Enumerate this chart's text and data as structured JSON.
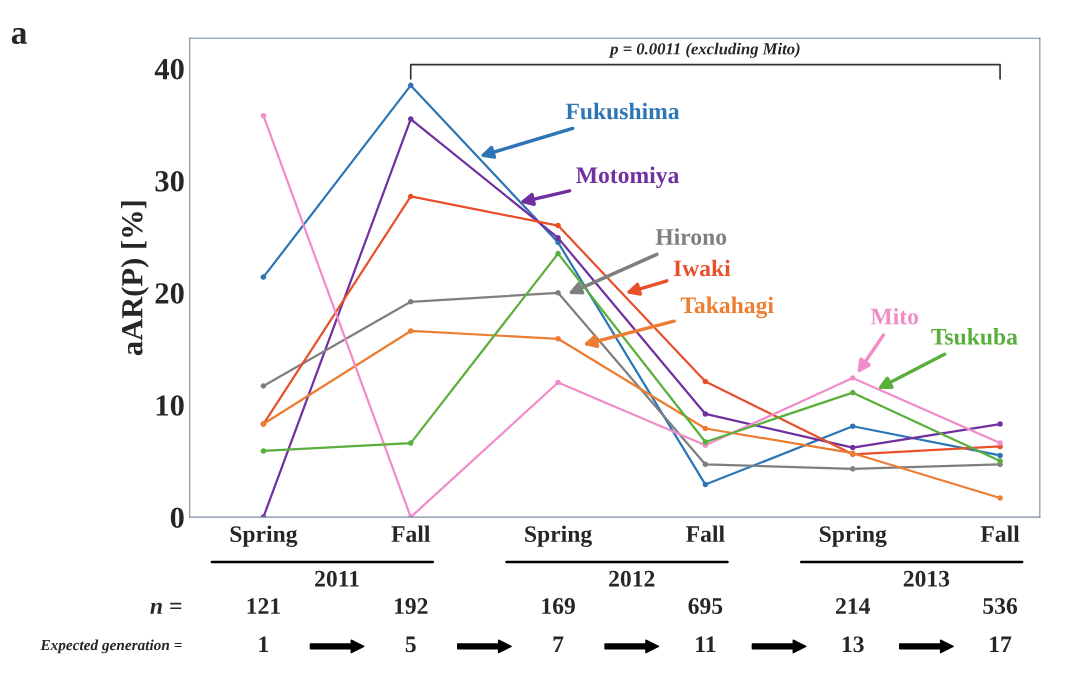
{
  "chart_data": {
    "type": "line",
    "title": "a",
    "ylabel": "aAR(P) [%]",
    "categories": [
      "Spring",
      "Fall",
      "Spring",
      "Fall",
      "Spring",
      "Fall"
    ],
    "series": [
      {
        "name": "Fukushima",
        "color": "#2e75b6",
        "values": [
          21.4,
          38.5,
          24.5,
          2.9,
          8.1,
          5.5
        ]
      },
      {
        "name": "Motomiya",
        "color": "#7030a0",
        "values": [
          0,
          35.5,
          24.9,
          9.2,
          6.2,
          8.3
        ]
      },
      {
        "name": "Hirono",
        "color": "#7f7f7f",
        "values": [
          11.7,
          19.2,
          20.0,
          4.7,
          4.3,
          4.7
        ]
      },
      {
        "name": "Iwaki",
        "color": "#e8502a",
        "values": [
          8.3,
          28.6,
          26.0,
          12.1,
          5.6,
          6.3
        ]
      },
      {
        "name": "Takahagi",
        "color": "#ed7d31",
        "values": [
          8.3,
          16.6,
          15.9,
          7.9,
          5.7,
          1.7
        ]
      },
      {
        "name": "Mito",
        "color": "#f08cc8",
        "values": [
          35.8,
          0,
          12.0,
          6.4,
          12.4,
          6.6
        ]
      },
      {
        "name": "Tsukuba",
        "color": "#5aaf3c",
        "values": [
          5.9,
          6.6,
          23.5,
          6.7,
          11.1,
          5.0
        ]
      }
    ],
    "ylim": [
      0,
      42.7
    ],
    "yticks": [
      0,
      10,
      20,
      30,
      40
    ],
    "grid": false,
    "legend": false,
    "marker": "circle",
    "line_style": "solid",
    "annotations": [
      "p = 0.0011 (excluding Mito)",
      "2011",
      "2012",
      "2013",
      "n =",
      "121",
      "192",
      "169",
      "695",
      "214",
      "536",
      "Expected generation =",
      "1",
      "5",
      "7",
      "11",
      "13",
      "17"
    ]
  }
}
